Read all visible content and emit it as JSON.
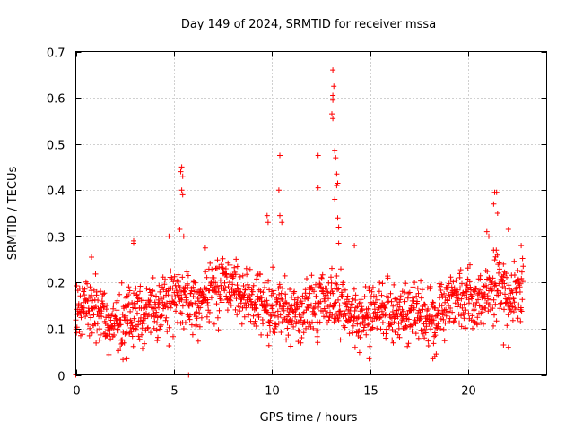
{
  "chart_data": {
    "type": "scatter",
    "title": "Day 149 of 2024, SRMTID for receiver mssa",
    "xlabel": "GPS time / hours",
    "ylabel": "SRMTID / TECUs",
    "xlim": [
      0,
      24
    ],
    "ylim": [
      0,
      0.7
    ],
    "xticks": [
      0,
      5,
      10,
      15,
      20
    ],
    "yticks": [
      0,
      0.1,
      0.2,
      0.3,
      0.4,
      0.5,
      0.6,
      0.7
    ],
    "grid": true,
    "marker": "+",
    "series": [
      {
        "name": "SRMTID",
        "color": "#ff0000",
        "baseline_profile": [
          [
            0.0,
            0.145
          ],
          [
            0.5,
            0.15
          ],
          [
            1.0,
            0.145
          ],
          [
            1.5,
            0.125
          ],
          [
            2.0,
            0.11
          ],
          [
            2.5,
            0.12
          ],
          [
            3.0,
            0.135
          ],
          [
            3.5,
            0.13
          ],
          [
            4.0,
            0.14
          ],
          [
            4.5,
            0.15
          ],
          [
            5.0,
            0.16
          ],
          [
            5.5,
            0.17
          ],
          [
            6.0,
            0.155
          ],
          [
            6.5,
            0.16
          ],
          [
            7.0,
            0.185
          ],
          [
            7.5,
            0.2
          ],
          [
            8.0,
            0.195
          ],
          [
            8.5,
            0.175
          ],
          [
            9.0,
            0.16
          ],
          [
            9.5,
            0.15
          ],
          [
            10.0,
            0.14
          ],
          [
            10.5,
            0.14
          ],
          [
            11.0,
            0.13
          ],
          [
            11.5,
            0.13
          ],
          [
            12.0,
            0.14
          ],
          [
            12.5,
            0.15
          ],
          [
            13.0,
            0.16
          ],
          [
            13.5,
            0.15
          ],
          [
            14.0,
            0.13
          ],
          [
            14.5,
            0.12
          ],
          [
            15.0,
            0.13
          ],
          [
            15.5,
            0.14
          ],
          [
            16.0,
            0.13
          ],
          [
            16.5,
            0.13
          ],
          [
            17.0,
            0.14
          ],
          [
            17.5,
            0.14
          ],
          [
            18.0,
            0.12
          ],
          [
            18.5,
            0.12
          ],
          [
            19.0,
            0.16
          ],
          [
            19.5,
            0.17
          ],
          [
            20.0,
            0.16
          ],
          [
            20.5,
            0.17
          ],
          [
            21.0,
            0.18
          ],
          [
            21.5,
            0.19
          ],
          [
            22.0,
            0.18
          ],
          [
            22.5,
            0.18
          ],
          [
            22.8,
            0.2
          ]
        ],
        "x_range": [
          0.0,
          22.8
        ],
        "spikes": [
          {
            "x": 0.0,
            "y": 0.0
          },
          {
            "x": 0.25,
            "y": 0.085
          },
          {
            "x": 0.8,
            "y": 0.255
          },
          {
            "x": 2.95,
            "y": 0.29
          },
          {
            "x": 2.95,
            "y": 0.285
          },
          {
            "x": 4.75,
            "y": 0.3
          },
          {
            "x": 5.35,
            "y": 0.44
          },
          {
            "x": 5.4,
            "y": 0.45
          },
          {
            "x": 5.45,
            "y": 0.43
          },
          {
            "x": 5.4,
            "y": 0.4
          },
          {
            "x": 5.45,
            "y": 0.39
          },
          {
            "x": 5.3,
            "y": 0.315
          },
          {
            "x": 5.5,
            "y": 0.3
          },
          {
            "x": 5.75,
            "y": 0.0
          },
          {
            "x": 6.6,
            "y": 0.275
          },
          {
            "x": 9.75,
            "y": 0.345
          },
          {
            "x": 9.8,
            "y": 0.33
          },
          {
            "x": 10.4,
            "y": 0.475
          },
          {
            "x": 10.35,
            "y": 0.4
          },
          {
            "x": 10.4,
            "y": 0.345
          },
          {
            "x": 10.5,
            "y": 0.33
          },
          {
            "x": 12.35,
            "y": 0.475
          },
          {
            "x": 12.35,
            "y": 0.405
          },
          {
            "x": 13.1,
            "y": 0.66
          },
          {
            "x": 13.15,
            "y": 0.625
          },
          {
            "x": 13.1,
            "y": 0.605
          },
          {
            "x": 13.1,
            "y": 0.595
          },
          {
            "x": 13.05,
            "y": 0.565
          },
          {
            "x": 13.1,
            "y": 0.555
          },
          {
            "x": 13.2,
            "y": 0.485
          },
          {
            "x": 13.25,
            "y": 0.47
          },
          {
            "x": 13.3,
            "y": 0.435
          },
          {
            "x": 13.35,
            "y": 0.415
          },
          {
            "x": 13.3,
            "y": 0.41
          },
          {
            "x": 13.2,
            "y": 0.38
          },
          {
            "x": 13.35,
            "y": 0.34
          },
          {
            "x": 13.4,
            "y": 0.32
          },
          {
            "x": 13.4,
            "y": 0.285
          },
          {
            "x": 21.35,
            "y": 0.395
          },
          {
            "x": 21.45,
            "y": 0.395
          },
          {
            "x": 21.3,
            "y": 0.37
          },
          {
            "x": 21.5,
            "y": 0.35
          },
          {
            "x": 20.95,
            "y": 0.31
          },
          {
            "x": 21.05,
            "y": 0.3
          },
          {
            "x": 22.05,
            "y": 0.315
          },
          {
            "x": 22.7,
            "y": 0.28
          },
          {
            "x": 18.2,
            "y": 0.035
          },
          {
            "x": 18.3,
            "y": 0.04
          },
          {
            "x": 14.95,
            "y": 0.035
          },
          {
            "x": 2.6,
            "y": 0.035
          },
          {
            "x": 22.05,
            "y": 0.06
          },
          {
            "x": 21.8,
            "y": 0.065
          },
          {
            "x": 14.2,
            "y": 0.28
          }
        ]
      }
    ]
  }
}
